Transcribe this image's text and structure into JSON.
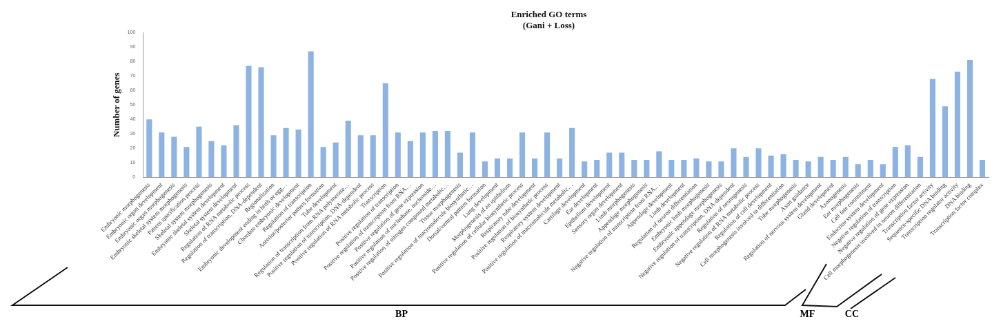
{
  "chart_data": {
    "type": "bar",
    "title": "Enriched GO terms",
    "subtitle": "(Gani + Loss)",
    "ylabel": "Number of genes",
    "categories": [
      "Embryonic morphogenesis",
      "Embryonic organ development",
      "Embryonic organ morphogenesis",
      "Embryonic skeletal system morphogenesis",
      "Pattern specification process",
      "Skeletal system morphogenesis",
      "Embryonic skeletal system development",
      "Skeletal system development",
      "Regulation of RNA metabolic process",
      "Regulation of transcription, DNA-dependent",
      "Regionalization",
      "Embryonic development ending in birth or egg…",
      "Chordate embryonic development",
      "Regulation of transcription",
      "Anterior/posterior pattern formation",
      "Tube development",
      "Regulation of transcription from RNA polymerase…",
      "Positive regulation of transcription, DNA-dependent",
      "Positive regulation of RNA metabolic process",
      "Transcription",
      "Positive regulation of transcription",
      "Positive regulation of transcription from RNA…",
      "Positive regulation of gene expression",
      "Positive regulation of nucleobase, nucleoside…",
      "Positive regulation of nitrogen compound metabolic…",
      "Tissue morphogenesis",
      "Positive regulation of macromolecule biosynthetic…",
      "Dorsal/ventral pattern formation",
      "Lung development",
      "Morphogenesis of an epithelium",
      "Positive regulation of cellular biosynthetic process",
      "Respiratory tube development",
      "Positive regulation of biosynthetic process",
      "Respiratory system development",
      "Positive regulation of macromolecule metabolic…",
      "Cartilage development",
      "Ear development",
      "Epithelium development",
      "Sensory organ development",
      "Limb morphogenesis",
      "Appendage morphogenesis",
      "Negative regulation of transcription from RNA…",
      "Appendage development",
      "Limb development",
      "Regulation of neuron differentiation",
      "Embryonic limb morphogenesis",
      "Embryonic appendage morphogenesis",
      "Negative regulation of transcription, DNA-dependent",
      "Regulation of neurogenesis",
      "Negative regulation of RNA metabolic process",
      "Regulation of cell development",
      "Cell morphogenesis involved in differentiation",
      "Tube morphogenesis",
      "Axon guidance",
      "Regulation of nervous system development",
      "Gland development",
      "Axonogenesis",
      "Ear morphogenesis",
      "Cell fate commitment",
      "Endocrine system development",
      "Negative regulation of transcription",
      "Negative regulation of gene expression",
      "Cell morphogenesis involved in neuron differentiation",
      "Transcription factor activity",
      "Sequence-specific DNA binding",
      "Transcription regulator activity",
      "DNA binding",
      "Transcription factor complex"
    ],
    "values": [
      40,
      31,
      28,
      21,
      35,
      25,
      22,
      36,
      77,
      76,
      29,
      34,
      33,
      87,
      21,
      24,
      39,
      29,
      29,
      65,
      31,
      25,
      31,
      32,
      32,
      17,
      31,
      11,
      13,
      13,
      31,
      13,
      31,
      13,
      34,
      11,
      12,
      17,
      17,
      12,
      12,
      18,
      12,
      12,
      13,
      11,
      11,
      20,
      14,
      20,
      15,
      16,
      12,
      11,
      14,
      12,
      14,
      9,
      12,
      9,
      21,
      22,
      14,
      68,
      49,
      73,
      81,
      12
    ],
    "color": "#8db3e2",
    "ylim": [
      0,
      100
    ],
    "yticks": [
      0,
      10,
      20,
      30,
      40,
      50,
      60,
      70,
      80,
      90,
      100
    ],
    "grid": false,
    "legend": false,
    "annotations": [
      "BP",
      "MF",
      "CC"
    ]
  }
}
